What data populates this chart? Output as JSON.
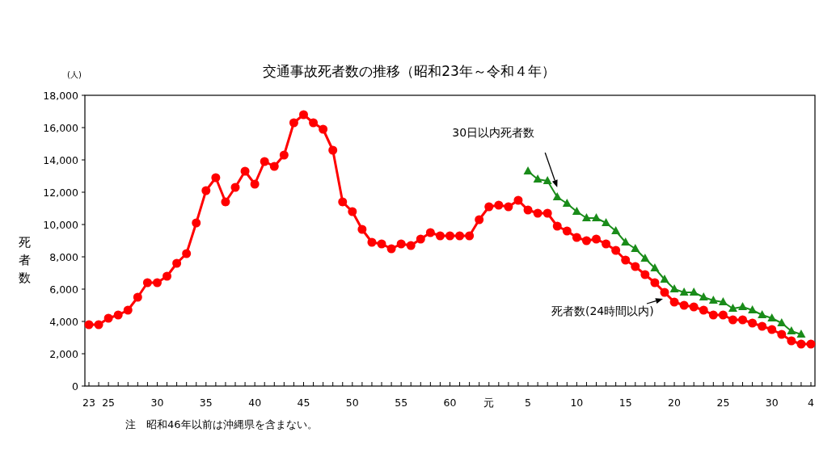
{
  "chart_data": {
    "type": "line",
    "title": "交通事故死者数の推移（昭和23年～令和４年）",
    "ylabel": "死者数",
    "annotations": [
      "(人)",
      "注　昭和46年以前は沖縄県を含まない。"
    ],
    "categories": [
      "23",
      null,
      "25",
      null,
      null,
      null,
      null,
      "30",
      null,
      null,
      null,
      null,
      "35",
      null,
      null,
      null,
      null,
      "40",
      null,
      null,
      null,
      null,
      "45",
      null,
      null,
      null,
      null,
      "50",
      null,
      null,
      null,
      null,
      "55",
      null,
      null,
      null,
      null,
      "60",
      null,
      null,
      null,
      "元",
      null,
      null,
      null,
      "5",
      null,
      null,
      null,
      null,
      "10",
      null,
      null,
      null,
      null,
      "15",
      null,
      null,
      null,
      null,
      "20",
      null,
      null,
      null,
      null,
      "25",
      null,
      null,
      null,
      null,
      "30",
      null,
      null,
      null,
      "4"
    ],
    "series": [
      {
        "name": "死者数(24時間以内)",
        "color": "#ff0000",
        "marker": "circle",
        "values": [
          3800,
          3800,
          4200,
          4400,
          4700,
          5500,
          6400,
          6400,
          6800,
          7600,
          8200,
          10100,
          12100,
          12900,
          11400,
          12300,
          13300,
          12500,
          13900,
          13600,
          14300,
          16300,
          16800,
          16300,
          15900,
          14600,
          11400,
          10800,
          9700,
          8900,
          8800,
          8500,
          8800,
          8700,
          9100,
          9500,
          9300,
          9300,
          9300,
          9300,
          10300,
          11100,
          11200,
          11100,
          11500,
          10900,
          10700,
          10700,
          9900,
          9600,
          9200,
          9000,
          9100,
          8800,
          8400,
          7800,
          7400,
          6900,
          6400,
          5800,
          5200,
          5000,
          4900,
          4700,
          4400,
          4400,
          4100,
          4100,
          3900,
          3700,
          3500,
          3200,
          2800,
          2600,
          2600
        ]
      },
      {
        "name": "30日以内死者数",
        "color": "#1a8c1a",
        "marker": "triangle",
        "values": [
          null,
          null,
          null,
          null,
          null,
          null,
          null,
          null,
          null,
          null,
          null,
          null,
          null,
          null,
          null,
          null,
          null,
          null,
          null,
          null,
          null,
          null,
          null,
          null,
          null,
          null,
          null,
          null,
          null,
          null,
          null,
          null,
          null,
          null,
          null,
          null,
          null,
          null,
          null,
          null,
          null,
          null,
          null,
          null,
          null,
          13300,
          12800,
          12700,
          11700,
          11300,
          10800,
          10400,
          10400,
          10100,
          9600,
          8900,
          8500,
          7900,
          7300,
          6600,
          6000,
          5800,
          5800,
          5500,
          5300,
          5200,
          4800,
          4900,
          4700,
          4400,
          4200,
          3900,
          3400,
          3200,
          null
        ]
      }
    ],
    "ylim": [
      0,
      18000
    ],
    "yticks": [
      {
        "value": 0,
        "label": "0"
      },
      {
        "value": 2000,
        "label": "2,000"
      },
      {
        "value": 4000,
        "label": "4,000"
      },
      {
        "value": 6000,
        "label": "6,000"
      },
      {
        "value": 8000,
        "label": "8,000"
      },
      {
        "value": 10000,
        "label": "10,000"
      },
      {
        "value": 12000,
        "label": "12,000"
      },
      {
        "value": 14000,
        "label": "14,000"
      },
      {
        "value": 16000,
        "label": "16,000"
      },
      {
        "value": 18000,
        "label": "18,000"
      }
    ],
    "line_style": "solid",
    "grid": false,
    "legend": false
  }
}
